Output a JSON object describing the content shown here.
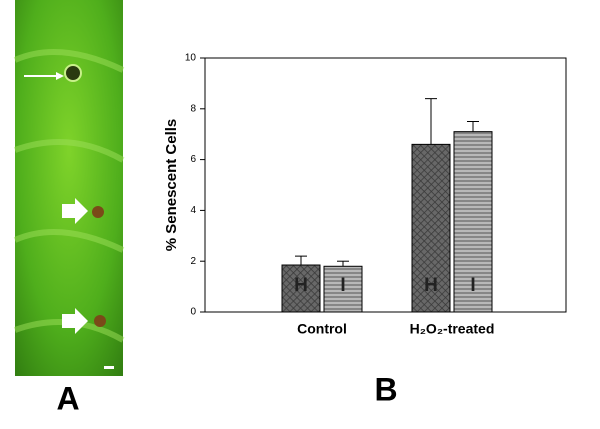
{
  "chart_data": {
    "type": "bar",
    "panel_labels": [
      "A",
      "B"
    ],
    "ylabel": "% Senescent Cells",
    "categories": [
      "Control",
      "H₂O₂-treated"
    ],
    "series": [
      {
        "name": "H",
        "color": "#555555",
        "values": [
          1.85,
          6.6
        ],
        "errors": [
          0.35,
          1.8
        ]
      },
      {
        "name": "I",
        "color": "#8a8a8a",
        "values": [
          1.8,
          7.1
        ],
        "errors": [
          0.2,
          0.4
        ]
      }
    ],
    "ylim": [
      0,
      10
    ],
    "yticks": [
      0,
      2,
      4,
      6,
      8,
      10
    ]
  }
}
